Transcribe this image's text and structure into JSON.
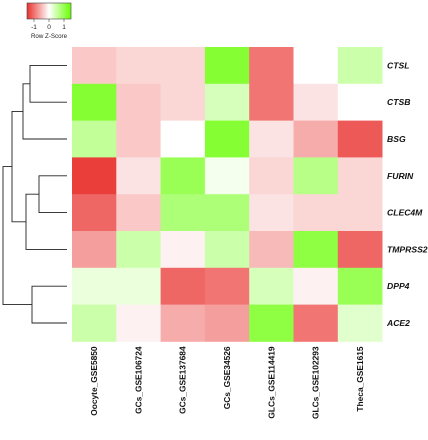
{
  "chart_data": {
    "type": "heatmap",
    "rows": [
      "CTSL",
      "CTSB",
      "BSG",
      "FURIN",
      "CLEC4M",
      "TMPRSS2",
      "DPP4",
      "ACE2"
    ],
    "columns": [
      "Oocyte_GSE5850",
      "GCs_GSE106724",
      "GCs_GSE137684",
      "GCs_GSE34526",
      "GLCs_GSE114419",
      "GLCs_GSE102293",
      "Theca_GSE1615"
    ],
    "values": [
      [
        -0.4,
        -0.3,
        -0.3,
        1.2,
        -1.0,
        0.0,
        0.5
      ],
      [
        1.2,
        -0.4,
        -0.3,
        0.4,
        -1.0,
        -0.2,
        0.0
      ],
      [
        0.6,
        -0.4,
        0.0,
        1.2,
        -0.2,
        -0.6,
        -1.2
      ],
      [
        -1.4,
        -0.2,
        1.0,
        0.1,
        -0.3,
        0.7,
        -0.3
      ],
      [
        -1.1,
        -0.4,
        0.8,
        0.8,
        -0.2,
        -0.3,
        -0.3
      ],
      [
        -0.7,
        0.5,
        -0.1,
        0.5,
        -0.5,
        1.1,
        -1.1
      ],
      [
        0.2,
        0.2,
        -1.1,
        -1.0,
        0.4,
        -0.1,
        1.0
      ],
      [
        0.5,
        -0.1,
        -0.6,
        -0.7,
        1.1,
        -1.0,
        0.3
      ]
    ],
    "color_scale": {
      "min": -1.5,
      "max": 1.5,
      "low": "#e8302d",
      "mid": "#ffffff",
      "high": "#66ff00"
    },
    "color_key": {
      "title": "Row Z-Score",
      "ticks": [
        "-1",
        "0",
        "1"
      ]
    },
    "row_dendrogram": true
  }
}
